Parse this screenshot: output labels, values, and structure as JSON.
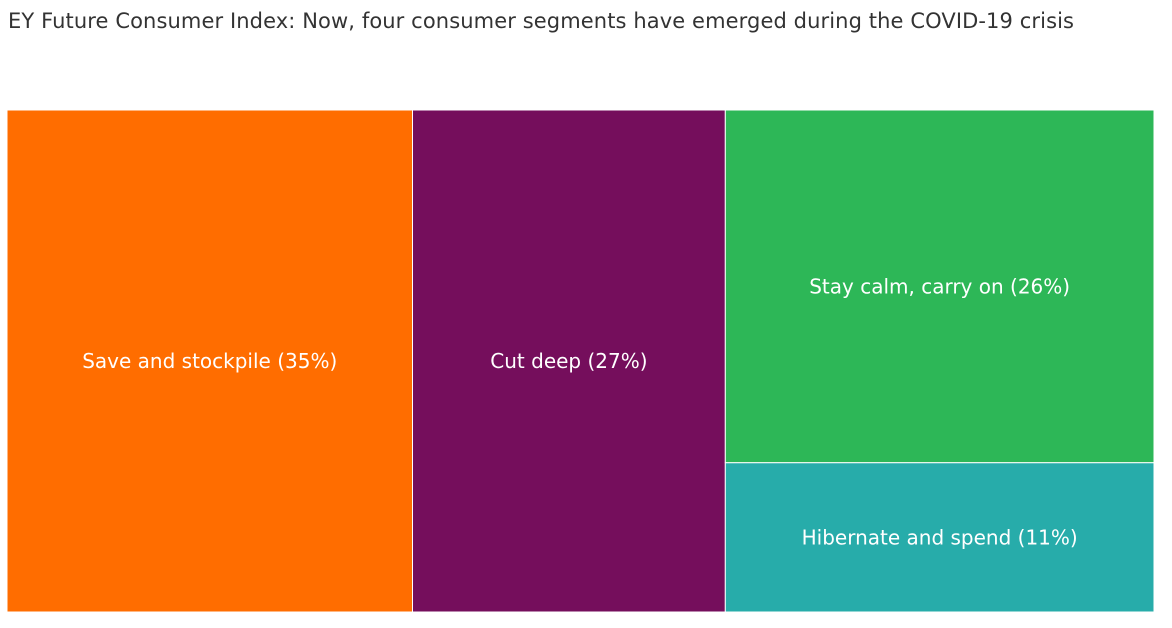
{
  "title": "EY Future Consumer Index: Now, four consumer segments have emerged during the COVID-19 crisis",
  "chart_data": {
    "type": "treemap",
    "title": "EY Future Consumer Index: Now, four consumer segments have emerged during the COVID-19 crisis",
    "items": [
      {
        "name": "Save and stockpile",
        "value": 35,
        "label": "Save and stockpile (35%)",
        "color": "#FF6D00"
      },
      {
        "name": "Cut deep",
        "value": 27,
        "label": "Cut deep (27%)",
        "color": "#750E5C"
      },
      {
        "name": "Stay calm, carry on",
        "value": 26,
        "label": "Stay calm, carry on (26%)",
        "color": "#2DB757"
      },
      {
        "name": "Hibernate and spend",
        "value": 11,
        "label": "Hibernate and spend (11%)",
        "color": "#27ACAA"
      }
    ]
  }
}
